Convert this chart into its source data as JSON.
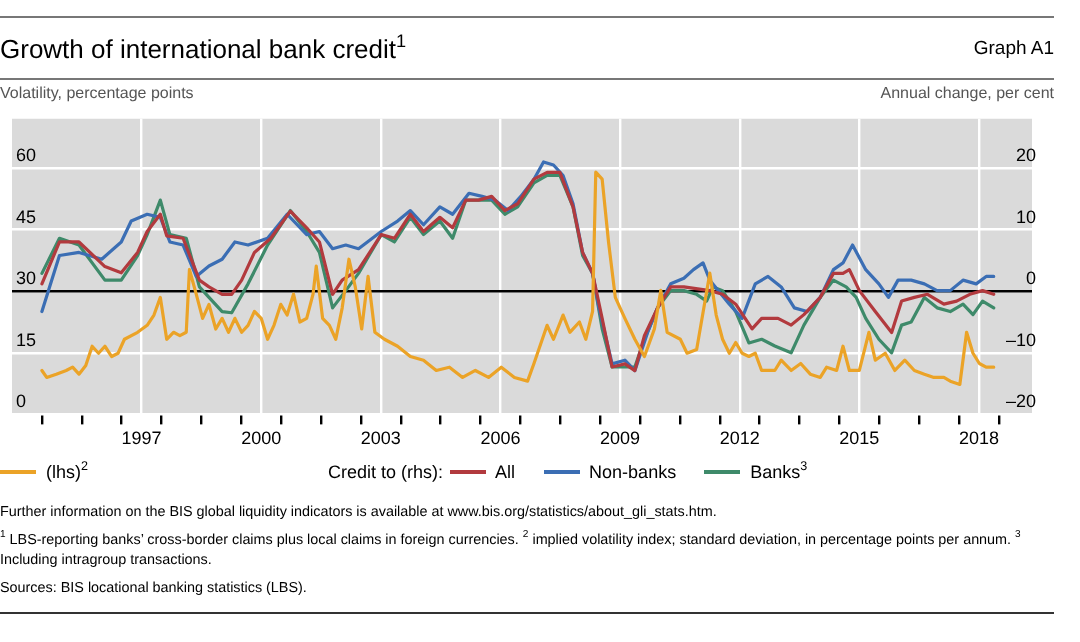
{
  "chart_data": {
    "type": "line",
    "title": "Growth of international bank credit$^{1}$",
    "subtitle": "Graph A1",
    "ylabel": "Volatility, percentage points",
    "y2label": "Annual change, per cent",
    "legend_title": "Credit to (rhs):",
    "legend": "bottom",
    "grid": true,
    "marker": "none",
    "line_style": "solid",
    "xlim": [
      1994.25,
      2019.83
    ],
    "xticks": [
      {
        "value": 1997.5,
        "label": "1997"
      },
      {
        "value": 2000.5,
        "label": "2000"
      },
      {
        "value": 2003.5,
        "label": "2003"
      },
      {
        "value": 2006.5,
        "label": "2006"
      },
      {
        "value": 2009.5,
        "label": "2009"
      },
      {
        "value": 2012.5,
        "label": "2012"
      },
      {
        "value": 2015.5,
        "label": "2015"
      },
      {
        "value": 2018.5,
        "label": "2018"
      },
      {
        "value": 1995,
        "label": null
      },
      {
        "value": 1996,
        "label": null
      },
      {
        "value": 1997,
        "label": null
      },
      {
        "value": 1998,
        "label": null
      },
      {
        "value": 1999,
        "label": null
      },
      {
        "value": 2000,
        "label": null
      },
      {
        "value": 2001,
        "label": null
      },
      {
        "value": 2002,
        "label": null
      },
      {
        "value": 2003,
        "label": null
      },
      {
        "value": 2004,
        "label": null
      },
      {
        "value": 2005,
        "label": null
      },
      {
        "value": 2006,
        "label": null
      },
      {
        "value": 2007,
        "label": null
      },
      {
        "value": 2008,
        "label": null
      },
      {
        "value": 2009,
        "label": null
      },
      {
        "value": 2010,
        "label": null
      },
      {
        "value": 2011,
        "label": null
      },
      {
        "value": 2012,
        "label": null
      },
      {
        "value": 2013,
        "label": null
      },
      {
        "value": 2014,
        "label": null
      },
      {
        "value": 2015,
        "label": null
      },
      {
        "value": 2016,
        "label": null
      },
      {
        "value": 2017,
        "label": null
      },
      {
        "value": 2018,
        "label": null
      },
      {
        "value": 2019,
        "label": null
      }
    ],
    "ylim": [
      0,
      72
    ],
    "yticks": [
      0,
      15,
      30,
      45,
      60
    ],
    "y2lim": [
      -20,
      28
    ],
    "y2ticks": [
      {
        "value": -20,
        "label": "–20"
      },
      {
        "value": -10,
        "label": "–10"
      },
      0,
      10,
      20
    ],
    "ref_lines": [
      {
        "axis": "y2",
        "value": 0,
        "color": "#000000"
      }
    ],
    "series": [
      {
        "name": "(lhs)$^{2}$",
        "color": "#eba327",
        "axis": "y",
        "x": [
          1995.0,
          1995.12,
          1995.36,
          1995.61,
          1995.77,
          1995.93,
          1996.1,
          1996.26,
          1996.42,
          1996.58,
          1996.75,
          1996.91,
          1997.07,
          1997.4,
          1997.64,
          1997.81,
          1997.97,
          1998.13,
          1998.3,
          1998.46,
          1998.62,
          1998.7,
          1998.87,
          1999.03,
          1999.19,
          1999.36,
          1999.52,
          1999.68,
          1999.84,
          2000.01,
          2000.17,
          2000.33,
          2000.5,
          2000.66,
          2000.82,
          2000.99,
          2001.15,
          2001.31,
          2001.47,
          2001.64,
          2001.8,
          2001.88,
          2002.04,
          2002.21,
          2002.37,
          2002.53,
          2002.7,
          2002.86,
          2003.02,
          2003.18,
          2003.35,
          2003.59,
          2003.92,
          2004.24,
          2004.57,
          2004.89,
          2005.22,
          2005.55,
          2005.87,
          2006.2,
          2006.52,
          2006.85,
          2007.18,
          2007.34,
          2007.67,
          2007.83,
          2008.07,
          2008.24,
          2008.48,
          2008.64,
          2008.81,
          2008.89,
          2009.05,
          2009.21,
          2009.38,
          2009.62,
          2009.87,
          2010.11,
          2010.36,
          2010.52,
          2010.68,
          2011.01,
          2011.18,
          2011.42,
          2011.75,
          2011.91,
          2012.07,
          2012.24,
          2012.4,
          2012.56,
          2012.73,
          2012.89,
          2013.05,
          2013.38,
          2013.54,
          2013.79,
          2014.03,
          2014.27,
          2014.52,
          2014.68,
          2014.93,
          2015.09,
          2015.25,
          2015.5,
          2015.74,
          2015.9,
          2016.15,
          2016.39,
          2016.64,
          2016.88,
          2017.13,
          2017.37,
          2017.62,
          2017.78,
          2018.02,
          2018.19,
          2018.35,
          2018.51,
          2018.68,
          2018.87
        ],
        "values": [
          10.7,
          9,
          9.8,
          10.7,
          11.5,
          9.8,
          11.9,
          16.6,
          14.9,
          16.6,
          14.1,
          14.9,
          18.3,
          20,
          21.7,
          24.2,
          28.5,
          18.3,
          20,
          19.2,
          20,
          35.3,
          29.3,
          23.4,
          26.8,
          20.8,
          23.4,
          20,
          23.4,
          20,
          21.7,
          25.1,
          23.4,
          18.3,
          21.7,
          26.8,
          24.2,
          29.3,
          22.5,
          23.4,
          29.3,
          36.1,
          23.4,
          21.7,
          18.3,
          25.9,
          37.8,
          31,
          20.8,
          33.6,
          20,
          18.3,
          16.6,
          14.1,
          13.2,
          10.7,
          11.5,
          9,
          10.7,
          9,
          11.5,
          9,
          8.1,
          12.4,
          21.7,
          18.3,
          24.2,
          20,
          22.5,
          18.3,
          25.1,
          59,
          57.3,
          42,
          28.5,
          23.4,
          18.3,
          14.1,
          20.8,
          30.2,
          20,
          18.3,
          14.9,
          15.8,
          34.4,
          24.2,
          18.3,
          14.9,
          17.5,
          14.9,
          14.1,
          14.9,
          10.7,
          10.7,
          13.2,
          10.7,
          12.4,
          9.8,
          9,
          11.5,
          10.7,
          16.6,
          10.7,
          10.7,
          20,
          13.2,
          14.9,
          10.7,
          13.2,
          10.7,
          9.8,
          9,
          9,
          8.1,
          7.3,
          20,
          14.9,
          12.4,
          11.5,
          11.5
        ]
      },
      {
        "name": "All",
        "color": "#b23a3e",
        "axis": "y2",
        "x": [
          1995.0,
          1995.44,
          1995.93,
          1996.58,
          1996.99,
          1997.4,
          1997.64,
          1997.97,
          1998.13,
          1998.54,
          1998.95,
          1999.19,
          1999.52,
          1999.76,
          2000.01,
          2000.33,
          2000.74,
          2001.23,
          2001.64,
          2001.96,
          2002.29,
          2002.53,
          2002.94,
          2003.51,
          2003.84,
          2004.24,
          2004.57,
          2004.98,
          2005.3,
          2005.63,
          2005.95,
          2006.28,
          2006.61,
          2006.93,
          2007.34,
          2007.67,
          2007.99,
          2008.32,
          2008.56,
          2008.81,
          2009.05,
          2009.3,
          2009.62,
          2009.87,
          2010.11,
          2010.44,
          2010.77,
          2011.1,
          2011.75,
          2012.07,
          2012.4,
          2012.81,
          2013.05,
          2013.46,
          2013.79,
          2014.11,
          2014.52,
          2014.85,
          2015.09,
          2015.25,
          2015.5,
          2015.9,
          2016.31,
          2016.56,
          2016.88,
          2017.21,
          2017.62,
          2017.94,
          2018.27,
          2018.59,
          2018.87
        ],
        "values": [
          1.2,
          8,
          8,
          4,
          3,
          6.3,
          9.7,
          12.5,
          9,
          8.6,
          1.8,
          0.7,
          -0.5,
          -0.5,
          1.8,
          6.3,
          8.6,
          13,
          10.3,
          8,
          -0.5,
          1.8,
          3.5,
          9.2,
          8.6,
          12.5,
          9.7,
          12,
          10.3,
          14.8,
          14.8,
          15.4,
          13.1,
          14.2,
          18.2,
          19.3,
          19.3,
          13.7,
          6.3,
          2.9,
          -4.4,
          -12.3,
          -11.8,
          -12.9,
          -7.2,
          -2.7,
          0.7,
          0.7,
          0.1,
          -0.5,
          -2.1,
          -6.1,
          -4.4,
          -4.4,
          -5.5,
          -3.8,
          -1,
          2.9,
          2.9,
          3.5,
          0.1,
          -3.3,
          -6.7,
          -1.6,
          -1,
          -0.5,
          -2.1,
          -1.6,
          -0.5,
          0.1,
          -0.5
        ]
      },
      {
        "name": "Non-banks",
        "color": "#3b6eb4",
        "axis": "y2",
        "x": [
          1995.0,
          1995.44,
          1995.93,
          1996.5,
          1996.99,
          1997.24,
          1997.64,
          1997.97,
          1998.21,
          1998.54,
          1998.87,
          1999.19,
          1999.52,
          1999.84,
          2000.17,
          2000.66,
          2001.15,
          2001.64,
          2001.96,
          2002.29,
          2002.62,
          2002.94,
          2003.51,
          2003.92,
          2004.24,
          2004.57,
          2004.98,
          2005.3,
          2005.71,
          2006.04,
          2006.36,
          2006.69,
          2007.01,
          2007.34,
          2007.58,
          2007.83,
          2008.07,
          2008.32,
          2008.56,
          2008.81,
          2008.97,
          2009.3,
          2009.62,
          2009.87,
          2010.19,
          2010.44,
          2010.77,
          2011.1,
          2011.34,
          2011.58,
          2011.75,
          2012.24,
          2012.56,
          2012.89,
          2013.21,
          2013.54,
          2013.87,
          2014.19,
          2014.52,
          2014.85,
          2015.09,
          2015.33,
          2015.66,
          2015.99,
          2016.23,
          2016.47,
          2016.8,
          2017.13,
          2017.45,
          2017.78,
          2018.1,
          2018.43,
          2018.68,
          2018.87
        ],
        "values": [
          -3.3,
          5.8,
          6.3,
          5.2,
          8,
          11.4,
          12.5,
          12,
          8,
          7.5,
          2.4,
          4.1,
          5.2,
          8,
          7.5,
          8.6,
          12.5,
          9.2,
          9.7,
          6.9,
          7.5,
          6.9,
          9.7,
          11.4,
          13.1,
          10.8,
          13.7,
          12.5,
          15.9,
          15.4,
          14.8,
          13.1,
          15.4,
          18.2,
          21,
          20.5,
          18.8,
          14.2,
          6.3,
          2.9,
          -2.7,
          -11.8,
          -11.2,
          -12.9,
          -6.7,
          -2.7,
          1.2,
          2.1,
          3.5,
          4.6,
          1.8,
          -2.1,
          -4.4,
          1.2,
          2.4,
          0.7,
          -2.7,
          -3.3,
          -1,
          3.5,
          4.6,
          7.5,
          3.5,
          1.2,
          -1,
          1.8,
          1.8,
          1.2,
          0.1,
          0.1,
          1.8,
          1.2,
          2.4,
          2.4
        ]
      },
      {
        "name": "Banks$^{3}$",
        "color": "#3e8a6a",
        "axis": "y2",
        "x": [
          1995.0,
          1995.44,
          1995.93,
          1996.58,
          1996.99,
          1997.4,
          1997.64,
          1997.97,
          1998.21,
          1998.62,
          1998.95,
          1999.19,
          1999.52,
          1999.76,
          2000.17,
          2000.66,
          2001.23,
          2001.64,
          2001.96,
          2002.29,
          2002.62,
          2002.94,
          2003.51,
          2003.84,
          2004.24,
          2004.57,
          2004.98,
          2005.3,
          2005.63,
          2005.95,
          2006.28,
          2006.61,
          2006.93,
          2007.34,
          2007.67,
          2007.99,
          2008.32,
          2008.56,
          2008.81,
          2009.05,
          2009.3,
          2009.62,
          2009.87,
          2010.11,
          2010.44,
          2010.77,
          2011.1,
          2011.42,
          2011.67,
          2011.83,
          2012.07,
          2012.4,
          2012.73,
          2013.05,
          2013.38,
          2013.79,
          2014.11,
          2014.52,
          2014.85,
          2015.17,
          2015.42,
          2015.66,
          2015.99,
          2016.31,
          2016.56,
          2016.8,
          2017.13,
          2017.45,
          2017.78,
          2018.1,
          2018.35,
          2018.59,
          2018.87
        ],
        "values": [
          2.9,
          8.6,
          7.5,
          1.8,
          1.8,
          5.8,
          9.2,
          14.8,
          9.2,
          8.6,
          0.7,
          -1,
          -3.3,
          -3.5,
          1.2,
          7.5,
          13.1,
          9.7,
          6.3,
          -2.7,
          0.1,
          2.9,
          9.2,
          8,
          12,
          9.2,
          11.4,
          8.6,
          14.8,
          14.8,
          14.8,
          12.5,
          13.7,
          17.6,
          18.8,
          18.8,
          13.7,
          5.8,
          2.9,
          -6.1,
          -12.3,
          -12.3,
          -12.3,
          -7.8,
          -2.7,
          0.1,
          0.1,
          -0.5,
          -1.6,
          0.7,
          0.1,
          -3.3,
          -8.4,
          -7.8,
          -8.9,
          -10,
          -5.5,
          -1,
          1.8,
          0.7,
          -1,
          -4.4,
          -7.8,
          -10,
          -5.5,
          -5,
          -1,
          -2.7,
          -3.3,
          -2.1,
          -3.8,
          -1.6,
          -2.7
        ]
      }
    ],
    "annotations": [
      "Further information on the BIS global liquidity indicators is available at www.bis.org/statistics/about_gli_stats.htm.",
      "$^{1}$ LBS-reporting banks’ cross-border claims plus local claims in foreign currencies.  $^{2}$ implied volatility index; standard deviation, in percentage points per annum.  $^{3}$ Including intragroup transactions.",
      "Sources: BIS locational banking statistics (LBS)."
    ]
  }
}
